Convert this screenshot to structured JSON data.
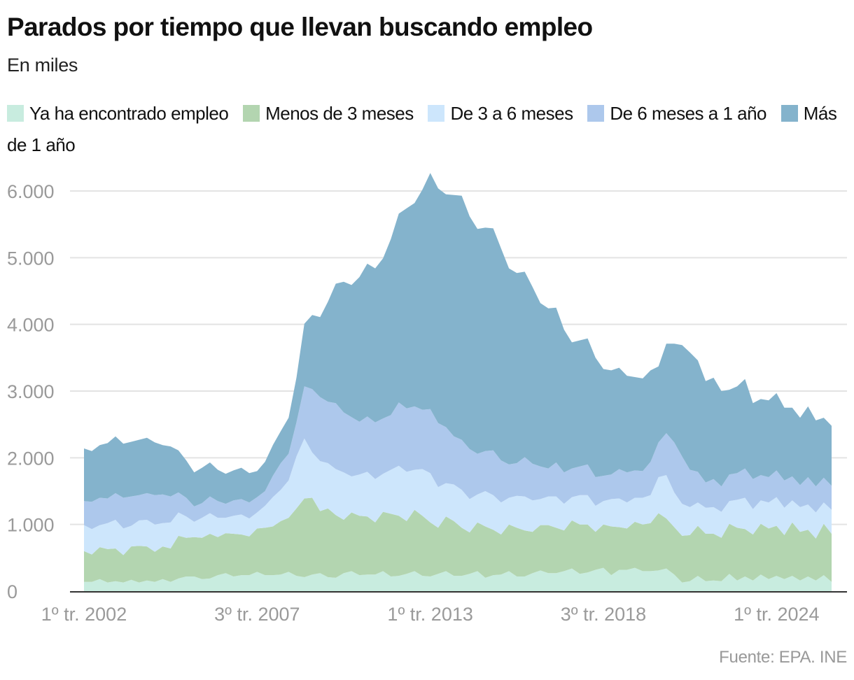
{
  "chart_data": {
    "type": "area",
    "stacked": true,
    "title": "Parados por tiempo que llevan buscando empleo",
    "subtitle": "En miles",
    "source": "Fuente: EPA. INE",
    "x_start": "1º tr. 2002",
    "x_end": "4º tr. 2025",
    "frequency": "quarterly",
    "x_tick_labels": [
      "1º tr. 2002",
      "3º tr. 2007",
      "1º tr. 2013",
      "3º tr. 2018",
      "1º tr. 2024"
    ],
    "x_tick_quarter_index": [
      0,
      22,
      44,
      66,
      88
    ],
    "y_ticks": [
      0,
      1000,
      2000,
      3000,
      4000,
      5000,
      6000
    ],
    "y_tick_labels": [
      "0",
      "1.000",
      "2.000",
      "3.000",
      "4.000",
      "5.000",
      "6.000"
    ],
    "ylim": [
      0,
      6000
    ],
    "grid": true,
    "legend_placement": "top",
    "series": [
      {
        "name": "Ya ha encontrado empleo",
        "color": "#c8ecdf",
        "values": [
          140,
          140,
          180,
          130,
          150,
          130,
          170,
          130,
          160,
          140,
          180,
          140,
          190,
          220,
          220,
          180,
          190,
          240,
          270,
          220,
          240,
          240,
          290,
          240,
          240,
          250,
          290,
          230,
          210,
          250,
          270,
          210,
          200,
          270,
          300,
          240,
          250,
          250,
          300,
          220,
          230,
          260,
          300,
          230,
          220,
          260,
          300,
          230,
          230,
          260,
          300,
          200,
          240,
          250,
          300,
          220,
          220,
          270,
          310,
          270,
          270,
          300,
          340,
          260,
          280,
          320,
          350,
          240,
          320,
          320,
          350,
          300,
          300,
          310,
          340,
          250,
          130,
          150,
          230,
          150,
          160,
          150,
          260,
          160,
          220,
          160,
          250,
          180,
          230,
          180,
          230,
          160,
          220,
          160,
          240,
          140
        ]
      },
      {
        "name": "Menos de 3 meses",
        "color": "#b3d5b0",
        "values": [
          460,
          410,
          480,
          500,
          490,
          410,
          500,
          550,
          510,
          450,
          490,
          500,
          640,
          580,
          590,
          620,
          670,
          570,
          600,
          640,
          610,
          580,
          650,
          710,
          730,
          800,
          810,
          1010,
          1180,
          1150,
          930,
          1030,
          940,
          800,
          880,
          890,
          870,
          780,
          890,
          940,
          900,
          790,
          920,
          900,
          810,
          690,
          820,
          820,
          720,
          620,
          730,
          770,
          680,
          600,
          700,
          730,
          690,
          620,
          680,
          720,
          680,
          610,
          720,
          740,
          720,
          570,
          650,
          730,
          640,
          620,
          690,
          700,
          720,
          860,
          750,
          710,
          700,
          690,
          750,
          710,
          700,
          650,
          750,
          790,
          710,
          690,
          760,
          760,
          750,
          660,
          800,
          730,
          700,
          630,
          770,
          720
        ]
      },
      {
        "name": "De 3 a 6 meses",
        "color": "#cde6fc",
        "values": [
          390,
          380,
          330,
          390,
          430,
          400,
          310,
          380,
          400,
          410,
          350,
          390,
          350,
          320,
          230,
          300,
          310,
          290,
          230,
          270,
          300,
          270,
          240,
          330,
          440,
          470,
          560,
          780,
          900,
          680,
          750,
          680,
          690,
          710,
          540,
          620,
          670,
          650,
          570,
          660,
          750,
          740,
          600,
          700,
          740,
          610,
          500,
          550,
          570,
          500,
          420,
          530,
          520,
          480,
          400,
          480,
          510,
          470,
          390,
          430,
          470,
          400,
          350,
          440,
          440,
          390,
          350,
          410,
          430,
          390,
          360,
          400,
          420,
          540,
          650,
          520,
          480,
          420,
          350,
          390,
          400,
          390,
          340,
          420,
          470,
          380,
          350,
          390,
          430,
          410,
          330,
          370,
          380,
          390,
          320,
          360
        ]
      },
      {
        "name": "De 6 meses a 1 año",
        "color": "#adc8ec",
        "values": [
          360,
          410,
          410,
          370,
          400,
          460,
          440,
          380,
          400,
          440,
          430,
          390,
          300,
          280,
          230,
          220,
          250,
          250,
          210,
          230,
          230,
          240,
          230,
          220,
          320,
          400,
          400,
          510,
          780,
          950,
          960,
          920,
          990,
          900,
          890,
          790,
          830,
          850,
          830,
          820,
          950,
          950,
          950,
          890,
          960,
          960,
          840,
          720,
          750,
          750,
          610,
          600,
          670,
          630,
          500,
          490,
          590,
          550,
          490,
          420,
          510,
          470,
          430,
          430,
          460,
          430,
          380,
          370,
          440,
          450,
          410,
          400,
          500,
          520,
          630,
          750,
          710,
          560,
          460,
          380,
          420,
          380,
          400,
          400,
          440,
          450,
          380,
          380,
          400,
          410,
          360,
          330,
          410,
          390,
          370,
          360
        ]
      },
      {
        "name": "Más de 1 año",
        "color": "#84b3cc",
        "values": [
          790,
          760,
          790,
          830,
          850,
          810,
          820,
          830,
          830,
          790,
          740,
          750,
          630,
          560,
          510,
          530,
          510,
          470,
          450,
          450,
          470,
          440,
          390,
          440,
          460,
          480,
          540,
          670,
          940,
          1110,
          1200,
          1500,
          1790,
          1960,
          1980,
          2170,
          2290,
          2310,
          2400,
          2640,
          2830,
          3000,
          3050,
          3300,
          3540,
          3520,
          3490,
          3620,
          3660,
          3490,
          3370,
          3350,
          3330,
          3180,
          2940,
          2850,
          2780,
          2650,
          2450,
          2400,
          2320,
          2140,
          1890,
          1890,
          1890,
          1790,
          1600,
          1560,
          1520,
          1450,
          1400,
          1390,
          1370,
          1140,
          1340,
          1480,
          1670,
          1760,
          1670,
          1520,
          1520,
          1430,
          1270,
          1300,
          1340,
          1140,
          1140,
          1150,
          1160,
          1090,
          1030,
          1010,
          1060,
          990,
          900,
          900
        ]
      }
    ]
  }
}
